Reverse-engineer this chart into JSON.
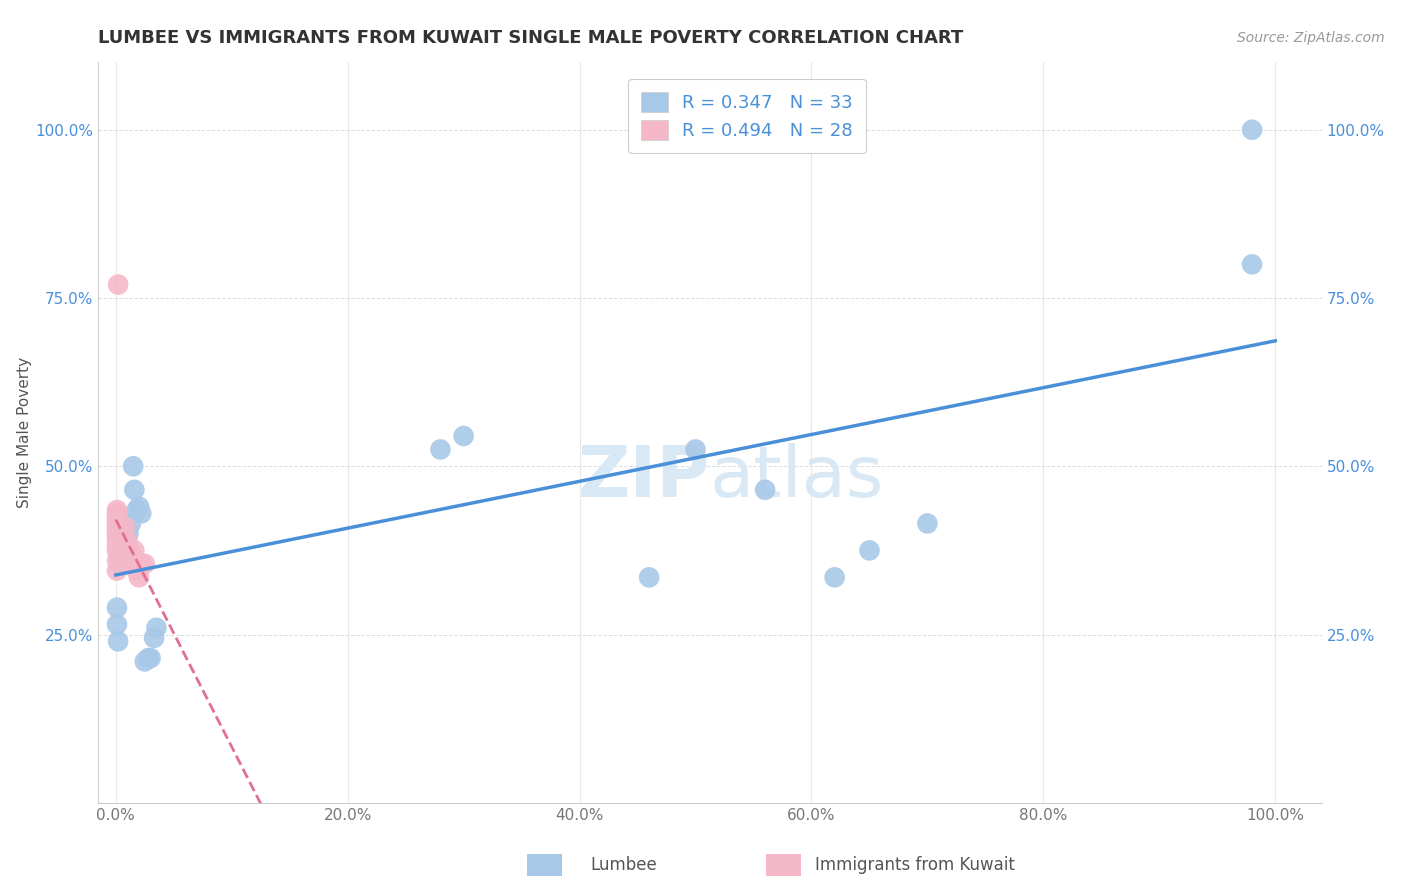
{
  "title": "LUMBEE VS IMMIGRANTS FROM KUWAIT SINGLE MALE POVERTY CORRELATION CHART",
  "source": "Source: ZipAtlas.com",
  "ylabel": "Single Male Poverty",
  "legend_label1": "Lumbee",
  "legend_label2": "Immigrants from Kuwait",
  "r1": 0.347,
  "n1": 33,
  "r2": 0.494,
  "n2": 28,
  "lumbee_x": [
    0.001,
    0.001,
    0.002,
    0.003,
    0.004,
    0.005,
    0.006,
    0.007,
    0.008,
    0.009,
    0.01,
    0.011,
    0.013,
    0.015,
    0.016,
    0.018,
    0.02,
    0.022,
    0.025,
    0.028,
    0.03,
    0.033,
    0.035,
    0.28,
    0.3,
    0.46,
    0.5,
    0.56,
    0.62,
    0.65,
    0.7,
    0.98,
    0.98
  ],
  "lumbee_y": [
    0.265,
    0.29,
    0.24,
    0.37,
    0.355,
    0.355,
    0.375,
    0.41,
    0.39,
    0.375,
    0.405,
    0.4,
    0.415,
    0.5,
    0.465,
    0.435,
    0.44,
    0.43,
    0.21,
    0.215,
    0.215,
    0.245,
    0.26,
    0.525,
    0.545,
    0.335,
    0.525,
    0.465,
    0.335,
    0.375,
    0.415,
    1.0,
    0.8
  ],
  "kuwait_x": [
    0.001,
    0.001,
    0.001,
    0.001,
    0.001,
    0.001,
    0.001,
    0.001,
    0.001,
    0.001,
    0.001,
    0.001,
    0.001,
    0.001,
    0.002,
    0.003,
    0.005,
    0.007,
    0.008,
    0.009,
    0.01,
    0.012,
    0.014,
    0.016,
    0.018,
    0.02,
    0.022,
    0.025
  ],
  "kuwait_y": [
    0.38,
    0.39,
    0.4,
    0.405,
    0.41,
    0.415,
    0.42,
    0.425,
    0.43,
    0.435,
    0.345,
    0.36,
    0.375,
    0.395,
    0.77,
    0.365,
    0.39,
    0.365,
    0.41,
    0.38,
    0.39,
    0.375,
    0.36,
    0.375,
    0.345,
    0.335,
    0.355,
    0.355
  ],
  "blue_color": "#a8c8e8",
  "pink_color": "#f4b8c8",
  "blue_line_color": "#4a90d9",
  "pink_line_color": "#e07090",
  "text_blue": "#4a90d9",
  "background": "#ffffff",
  "grid_color": "#e8e8e8",
  "title_color": "#333333",
  "watermark_color": "#d8e8f4",
  "xticklabels": [
    "0.0%",
    "20.0%",
    "40.0%",
    "60.0%",
    "80.0%",
    "100.0%"
  ],
  "xticks": [
    0.0,
    0.2,
    0.4,
    0.6,
    0.8,
    1.0
  ],
  "yticklabels": [
    "25.0%",
    "50.0%",
    "75.0%",
    "100.0%"
  ],
  "yticks": [
    0.25,
    0.5,
    0.75,
    1.0
  ]
}
